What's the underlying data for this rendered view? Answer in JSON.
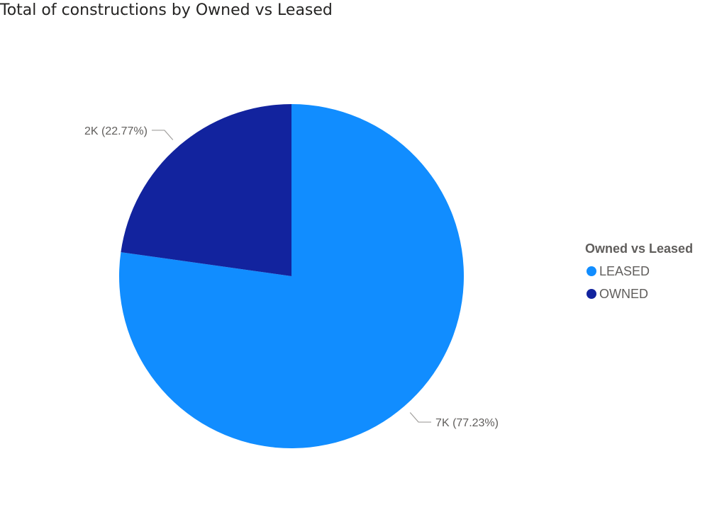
{
  "chart_data": {
    "type": "pie",
    "title": "Total of constructions by Owned vs Leased",
    "legend_title": "Owned vs Leased",
    "legend_position": "right",
    "start_angle_deg": 0,
    "slices": [
      {
        "name": "LEASED",
        "value": 7000,
        "percent": 77.23,
        "label": "7K (77.23%)",
        "color": "#118dff"
      },
      {
        "name": "OWNED",
        "value": 2000,
        "percent": 22.77,
        "label": "2K (22.77%)",
        "color": "#12239e"
      }
    ]
  }
}
